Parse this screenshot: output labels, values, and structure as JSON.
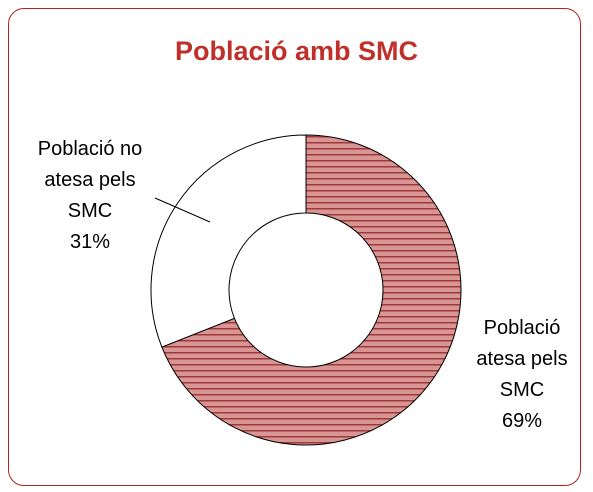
{
  "chart_data": {
    "type": "donut",
    "title": "Població amb SMC",
    "categories": [
      "Població atesa pels SMC",
      "Població no atesa pels SMC"
    ],
    "values": [
      69,
      31
    ],
    "value_labels": [
      "69%",
      "31%"
    ],
    "colors": [
      "#d99594",
      "#ffffff"
    ]
  }
}
